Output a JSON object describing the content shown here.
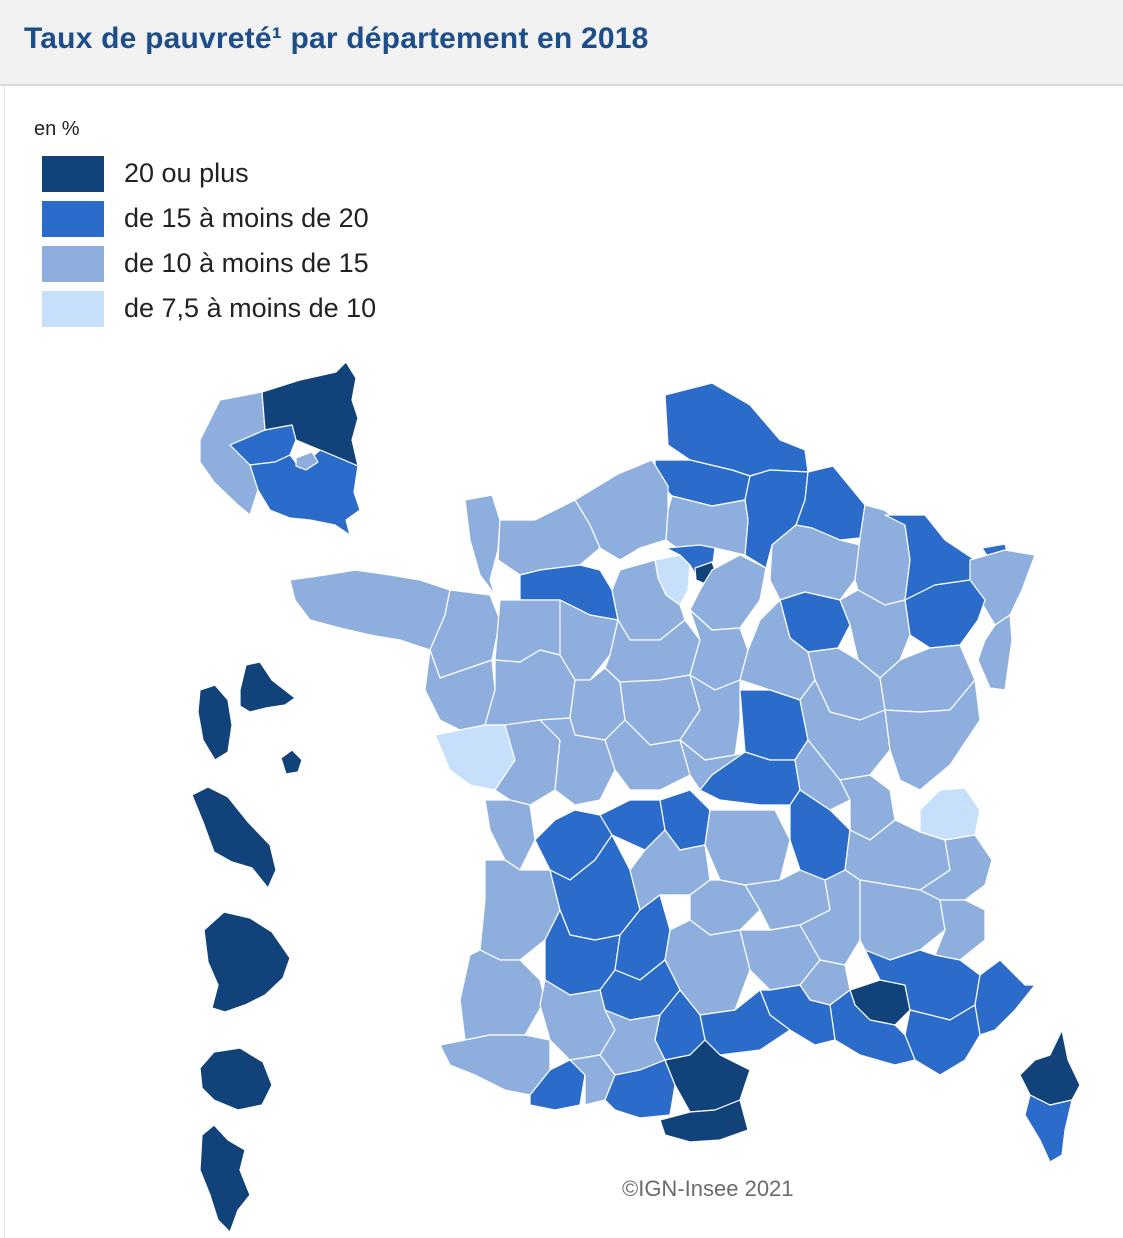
{
  "title": "Taux de pauvreté¹ par département en 2018",
  "legend": {
    "unit": "en %",
    "items": [
      {
        "label": "20 ou plus",
        "color": "#12427a"
      },
      {
        "label": "de 15 à moins de 20",
        "color": "#2b6bc9"
      },
      {
        "label": "de 10 à moins de 15",
        "color": "#8eafde"
      },
      {
        "label": "de 7,5 à moins de 10",
        "color": "#c6e0fb"
      }
    ]
  },
  "credit": "©IGN-Insee 2021",
  "map": {
    "border_color": "#ffffff",
    "regions_shown": [
      "Paris et petite couronne (encart)",
      "Guadeloupe",
      "Martinique",
      "Guyane",
      "La Réunion",
      "Mayotte",
      "France métropolitaine",
      "Corse"
    ]
  }
}
